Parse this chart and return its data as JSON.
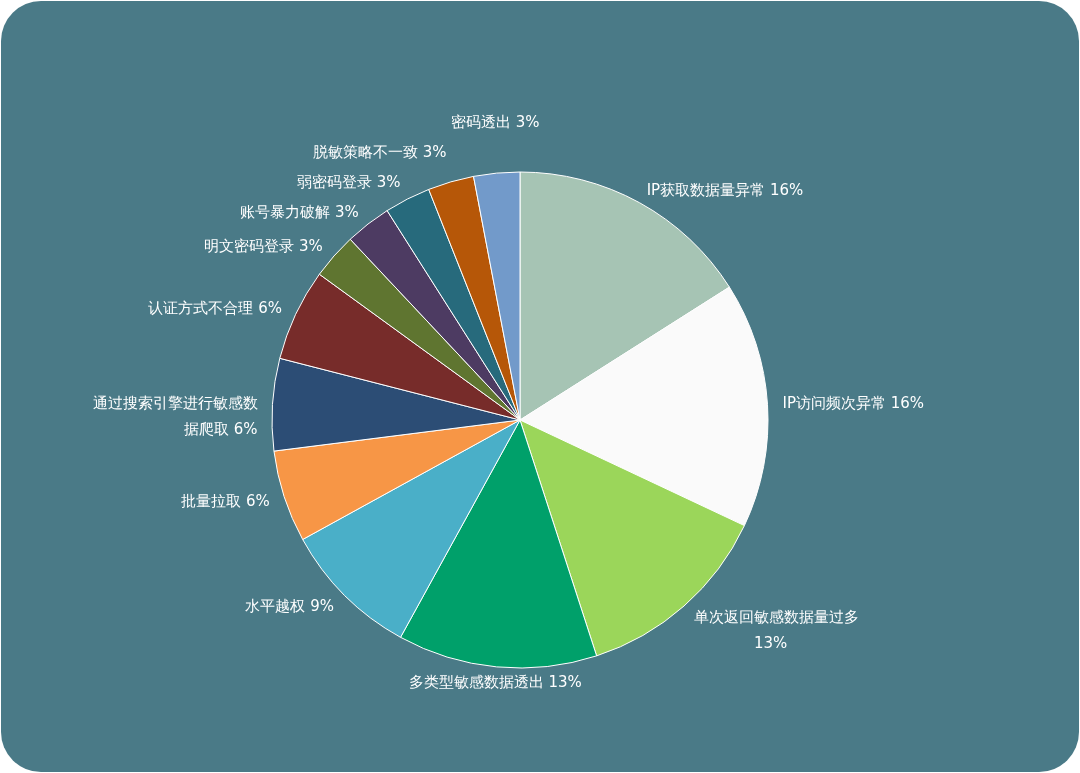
{
  "chart_data": {
    "type": "pie",
    "categories": [
      "IP获取数据量异常",
      "IP访问频次异常",
      "单次返回敏感数据量过多",
      "多类型敏感数据透出",
      "水平越权",
      "批量拉取",
      "通过搜索引擎进行敏感数据爬取",
      "认证方式不合理",
      "明文密码登录",
      "账号暴力破解",
      "弱密码登录",
      "脱敏策略不一致",
      "密码透出"
    ],
    "values": [
      16,
      16,
      13,
      13,
      9,
      6,
      6,
      6,
      3,
      3,
      3,
      3,
      3
    ],
    "value_labels": [
      "16%",
      "16%",
      "13%",
      "13%",
      "9%",
      "6%",
      "6%",
      "6%",
      "3%",
      "3%",
      "3%",
      "3%",
      "3%"
    ],
    "colors": [
      "#a6c4b4",
      "#fafafa",
      "#9bd65a",
      "#00a06a",
      "#4aafc8",
      "#f79646",
      "#2c4d75",
      "#772c2a",
      "#5f7530",
      "#4d3b62",
      "#276a7c",
      "#b65708",
      "#729aca"
    ]
  }
}
